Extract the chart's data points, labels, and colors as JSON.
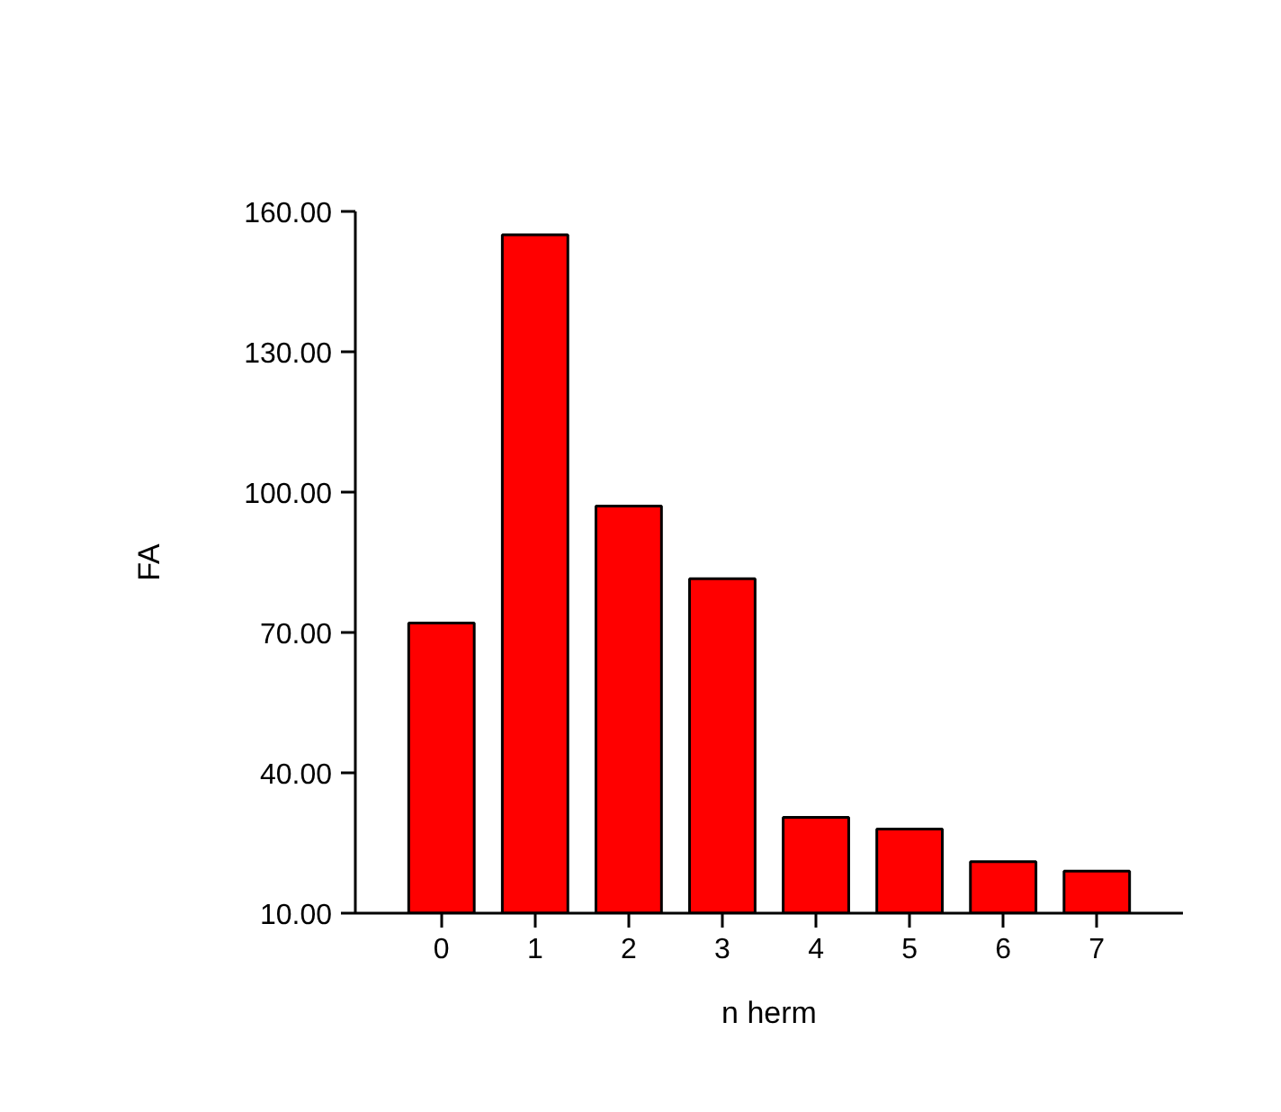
{
  "chart_data": {
    "type": "bar",
    "xlabel": "n herm",
    "ylabel": "FA",
    "categories": [
      "0",
      "1",
      "2",
      "3",
      "4",
      "5",
      "6",
      "7"
    ],
    "values": [
      72,
      155,
      97,
      81.5,
      30.5,
      28,
      21,
      19
    ],
    "color": "#ff0000",
    "ylim": [
      10,
      160
    ],
    "yticks": [
      {
        "value": 10,
        "label": "10.00"
      },
      {
        "value": 40,
        "label": "40.00"
      },
      {
        "value": 70,
        "label": "70.00"
      },
      {
        "value": 100,
        "label": "100.00"
      },
      {
        "value": 130,
        "label": "130.00"
      },
      {
        "value": 160,
        "label": "160.00"
      }
    ],
    "grid": false
  }
}
